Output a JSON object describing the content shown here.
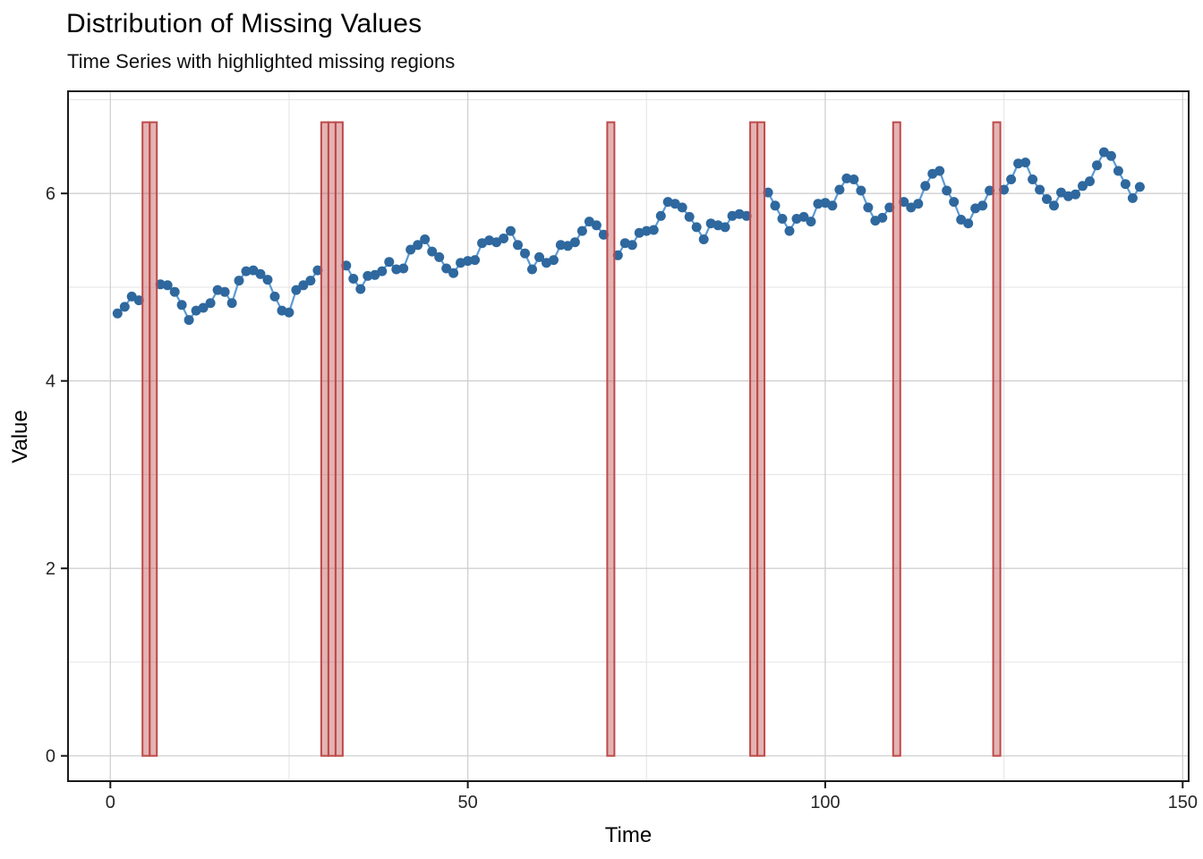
{
  "header": {
    "title": "Distribution of Missing Values",
    "subtitle": "Time Series with highlighted missing regions"
  },
  "chart_data": {
    "type": "line",
    "title": "Distribution of Missing Values",
    "subtitle": "Time Series with highlighted missing regions",
    "xlabel": "Time",
    "ylabel": "Value",
    "x_ticks": [
      0,
      50,
      100,
      150
    ],
    "x_minor_ticks": [
      25,
      75,
      125
    ],
    "y_ticks": [
      0,
      2,
      4,
      6
    ],
    "y_minor_ticks": [
      1,
      3,
      5,
      7
    ],
    "x_domain": [
      -5.92,
      150.84
    ],
    "y_domain": [
      -0.27,
      7.09
    ],
    "grid": true,
    "legend": "none",
    "x_start": 1,
    "missing_indices": [
      5,
      6,
      30,
      31,
      32,
      70,
      90,
      91,
      110,
      124
    ],
    "missing_region_ymin": 0,
    "missing_region_ymax": 6.76,
    "point_radius": 5.5,
    "colors": {
      "point": "#2E689E",
      "line": "#5B9BD5",
      "missing_fill": "#BF4B4B",
      "missing_fill_opacity": 0.42,
      "missing_stroke": "#BE4A4A",
      "grid_major": "#D0D0D0",
      "grid_minor": "#E6E6E6",
      "panel_border": "#1A1A1A",
      "tick_text": "#262626",
      "axis_title": "#000000"
    },
    "values": [
      4.72,
      4.79,
      4.9,
      4.86,
      null,
      null,
      5.03,
      5.02,
      4.95,
      4.81,
      4.65,
      4.75,
      4.78,
      4.83,
      4.97,
      4.95,
      4.83,
      5.07,
      5.17,
      5.18,
      5.14,
      5.08,
      4.9,
      4.75,
      4.73,
      4.97,
      5.02,
      5.07,
      5.18,
      null,
      null,
      null,
      5.23,
      5.09,
      4.98,
      5.12,
      5.13,
      5.17,
      5.27,
      5.19,
      5.2,
      5.4,
      5.45,
      5.51,
      5.38,
      5.32,
      5.2,
      5.15,
      5.26,
      5.28,
      5.29,
      5.47,
      5.5,
      5.48,
      5.52,
      5.6,
      5.45,
      5.36,
      5.19,
      5.32,
      5.26,
      5.29,
      5.45,
      5.44,
      5.48,
      5.6,
      5.7,
      5.66,
      5.56,
      null,
      5.34,
      5.47,
      5.45,
      5.58,
      5.6,
      5.61,
      5.76,
      5.91,
      5.89,
      5.85,
      5.75,
      5.64,
      5.51,
      5.68,
      5.66,
      5.64,
      5.76,
      5.78,
      5.76,
      null,
      null,
      6.01,
      5.87,
      5.73,
      5.6,
      5.73,
      5.75,
      5.7,
      5.89,
      5.9,
      5.87,
      6.04,
      6.16,
      6.15,
      6.03,
      5.85,
      5.71,
      5.74,
      5.85,
      null,
      5.91,
      5.85,
      5.89,
      6.08,
      6.21,
      6.24,
      6.03,
      5.91,
      5.72,
      5.68,
      5.84,
      5.87,
      6.03,
      null,
      6.04,
      6.15,
      6.32,
      6.33,
      6.15,
      6.04,
      5.94,
      5.87,
      6.01,
      5.97,
      5.99,
      6.08,
      6.13,
      6.3,
      6.44,
      6.4,
      6.24,
      6.1,
      5.95,
      6.07
    ]
  }
}
